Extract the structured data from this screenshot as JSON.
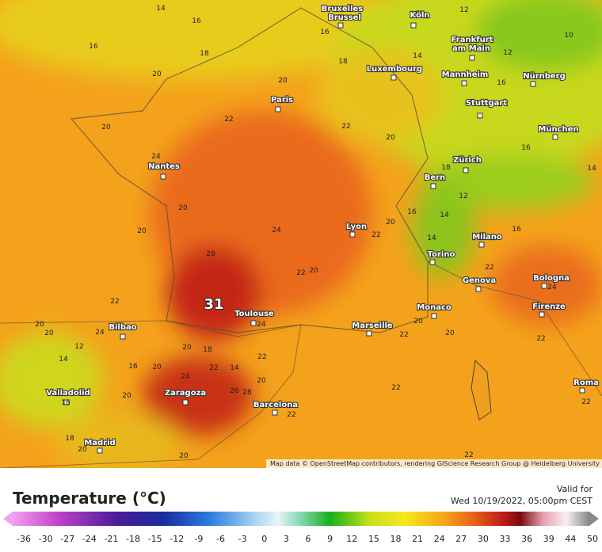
{
  "map": {
    "cities": [
      "Bruxelles",
      "Brussel",
      "Köln",
      "Frankfurt",
      "am Main",
      "Luxembourg",
      "Mannheim",
      "Nürnberg",
      "Paris",
      "Stuttgart",
      "München",
      "Nantes",
      "Zürich",
      "Bern",
      "Lyon",
      "Milano",
      "Torino",
      "Genova",
      "Bologna",
      "Bilbao",
      "Toulouse",
      "Monaco",
      "Marseille",
      "Firenze",
      "Valladolid",
      "Zaragoza",
      "Barcelona",
      "Roma",
      "Madrid"
    ],
    "contour_labels": [
      14,
      16,
      16,
      18,
      20,
      20,
      22,
      22,
      20,
      24,
      20,
      20,
      20,
      24,
      28,
      22,
      20,
      22,
      20,
      22,
      31,
      24,
      20,
      20,
      24,
      12,
      20,
      18,
      14,
      22,
      22,
      14,
      20,
      24,
      16,
      20,
      20,
      26,
      28,
      22,
      22,
      20,
      20,
      22,
      16,
      18,
      14,
      12,
      16,
      10,
      12,
      14,
      16,
      18,
      16,
      14,
      12,
      14,
      16,
      22,
      24,
      22,
      22,
      22,
      20,
      18,
      20,
      16
    ],
    "attribution": "Map data © OpenStreetMap contributors, rendering GIScience Research Group @ Heidelberg University"
  },
  "legend": {
    "title": "Temperature (°C)",
    "valid_label": "Valid for",
    "valid_time": "Wed 10/19/2022, 05:00pm CEST",
    "ticks": [
      -36,
      -30,
      -27,
      -24,
      -21,
      -18,
      -15,
      -12,
      -9,
      -6,
      -3,
      0,
      3,
      6,
      9,
      12,
      15,
      18,
      21,
      24,
      27,
      30,
      33,
      36,
      39,
      44,
      50
    ]
  }
}
